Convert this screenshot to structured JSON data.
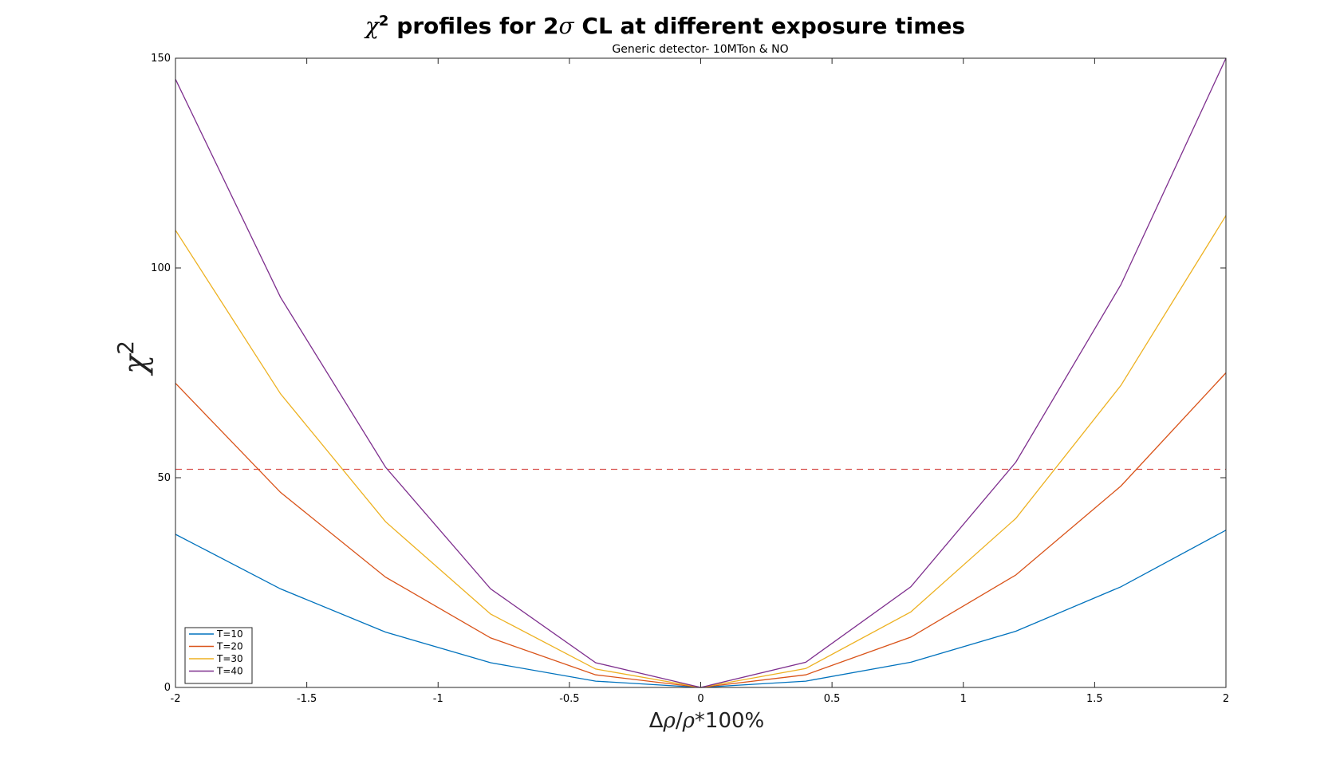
{
  "chart_data": {
    "type": "line",
    "title": "χ² profiles for 2σ CL at different exposure times",
    "title_parts": {
      "chi": "χ",
      "sup": "2",
      "mid": " profiles for 2",
      "sigma": "σ",
      "rest": " CL at different exposure times"
    },
    "subtitle": "Generic detector- 10MTon & NO",
    "xlabel": "Δρ/ρ*100%",
    "xlabel_parts": {
      "delta": "Δ",
      "rho1": "ρ",
      "slash": "/",
      "rho2": "ρ",
      "rest": "*100%"
    },
    "ylabel": "χ²",
    "ylabel_parts": {
      "chi": "χ",
      "sup": "2"
    },
    "xlim": [
      -2,
      2
    ],
    "ylim": [
      0,
      150
    ],
    "xticks": [
      -2,
      -1.5,
      -1,
      -0.5,
      0,
      0.5,
      1,
      1.5,
      2
    ],
    "xtick_labels": [
      "-2",
      "-1.5",
      "-1",
      "-0.5",
      "0",
      "0.5",
      "1",
      "1.5",
      "2"
    ],
    "yticks": [
      0,
      50,
      100,
      150
    ],
    "ytick_labels": [
      "0",
      "50",
      "100",
      "150"
    ],
    "grid": false,
    "legend_position": "bottom-left",
    "x": [
      -2,
      -1.6,
      -1.2,
      -0.8,
      -0.4,
      0,
      0.4,
      0.8,
      1.2,
      1.6,
      2
    ],
    "series": [
      {
        "name": "T=10",
        "color": "#0072BD",
        "values": [
          36.5,
          23.5,
          13.2,
          5.9,
          1.5,
          0,
          1.5,
          6.0,
          13.4,
          24.0,
          37.5
        ]
      },
      {
        "name": "T=20",
        "color": "#D95319",
        "values": [
          72.5,
          46.5,
          26.3,
          11.8,
          3.0,
          0,
          3.0,
          12.0,
          26.8,
          48.0,
          75.0
        ]
      },
      {
        "name": "T=30",
        "color": "#EDB120",
        "values": [
          109.0,
          70.0,
          39.5,
          17.5,
          4.4,
          0,
          4.5,
          18.0,
          40.3,
          72.0,
          112.5
        ]
      },
      {
        "name": "T=40",
        "color": "#7E2F8E",
        "values": [
          145.0,
          93.0,
          52.5,
          23.5,
          5.9,
          0,
          6.0,
          24.0,
          53.7,
          96.0,
          150.0
        ]
      }
    ],
    "reference_line": {
      "y": 52,
      "color": "#D9534F",
      "style": "dashed"
    }
  }
}
